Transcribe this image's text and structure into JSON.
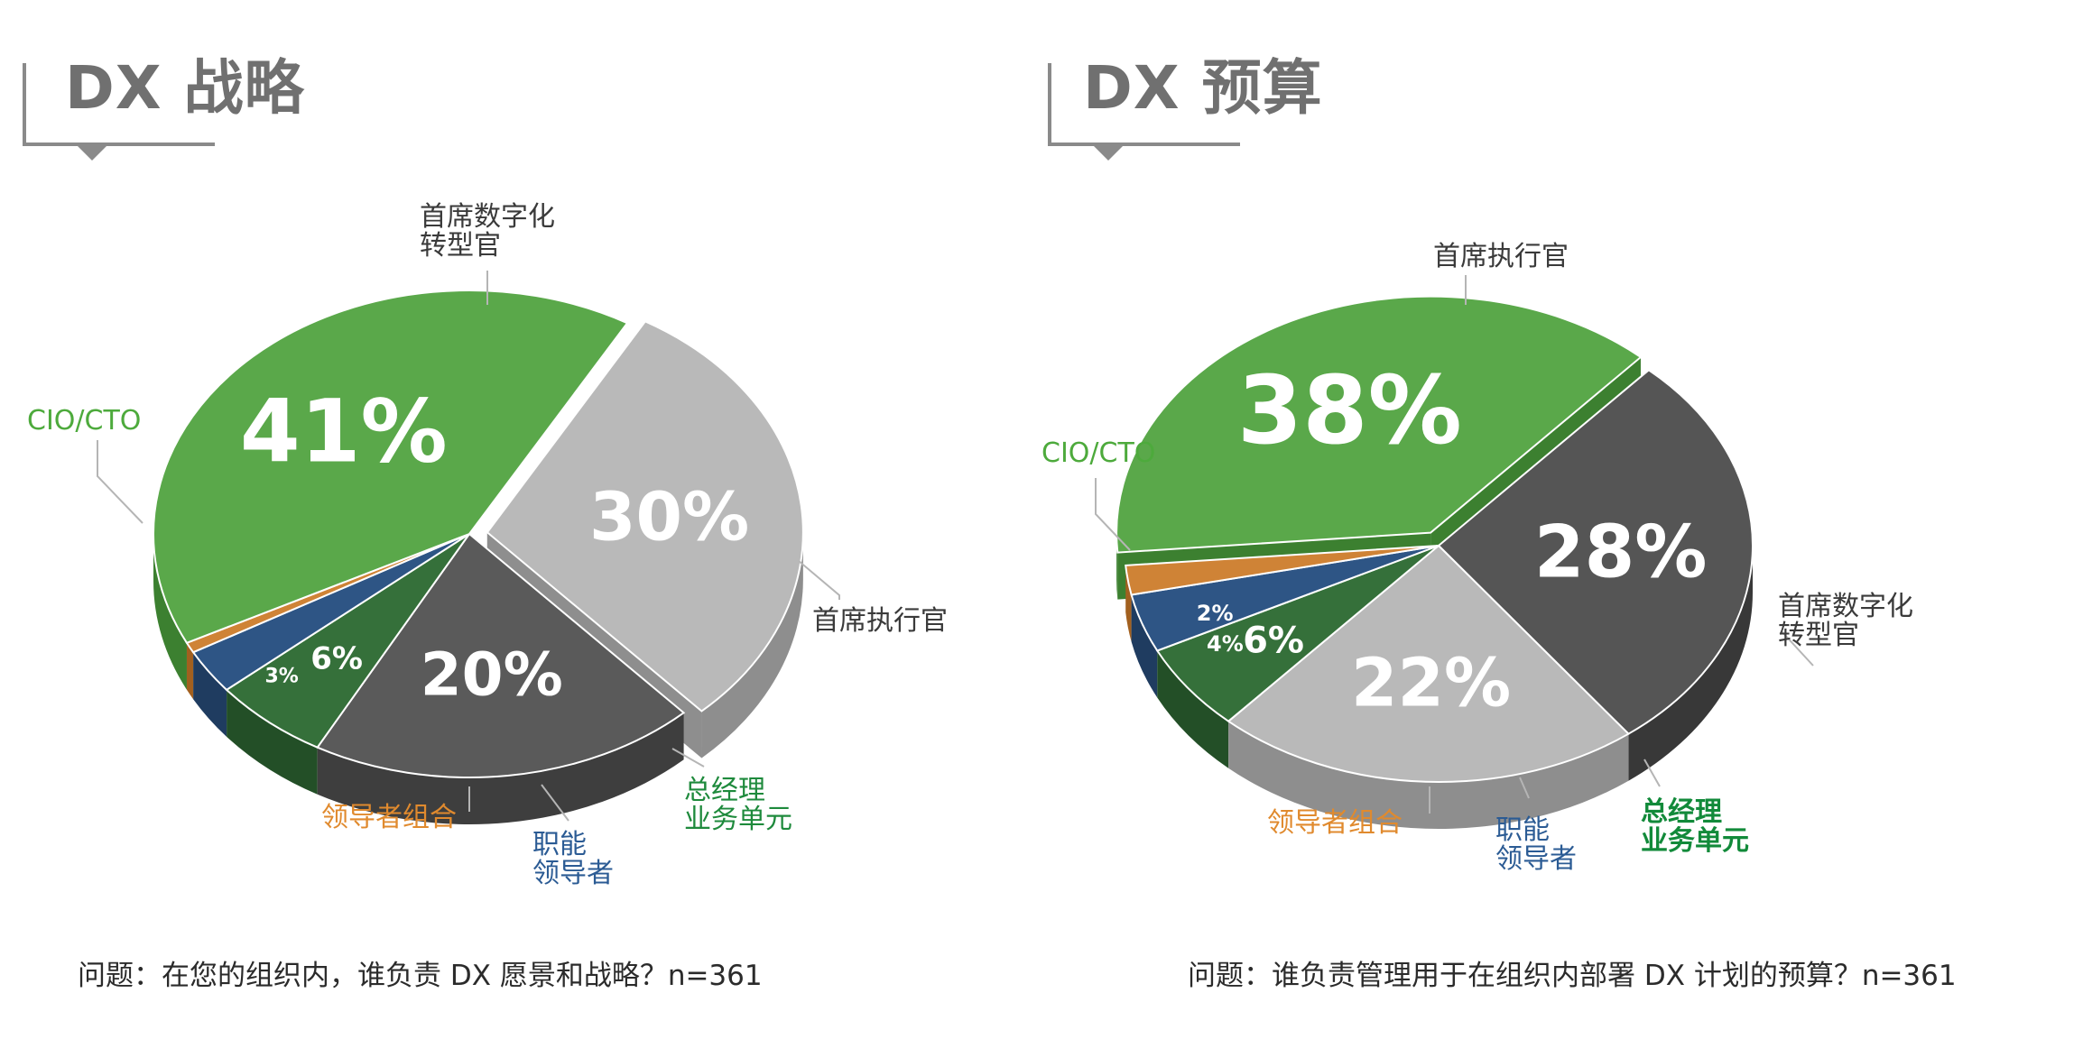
{
  "charts": [
    {
      "heading": "DX 战略",
      "question": "问题：在您的组织内，谁负责 DX 愿景和战略？n=361",
      "chart_data": {
        "type": "pie",
        "slices": [
          {
            "label": "首席数字化转型官",
            "label_lines": [
              "首席数字化",
              "转型官"
            ],
            "value": 30,
            "value_label": "30%",
            "color": "#b9b9b9",
            "side": "#8e8e8e",
            "label_color": "#3a3a3a"
          },
          {
            "label": "首席执行官",
            "label_lines": [
              "首席执行官"
            ],
            "value": 20,
            "value_label": "20%",
            "color": "#5a5a5a",
            "side": "#3e3e3e",
            "label_color": "#3a3a3a"
          },
          {
            "label": "总经理 业务单元",
            "label_lines": [
              "总经理",
              "业务单元"
            ],
            "value": 6,
            "value_label": "6%",
            "color": "#35703a",
            "side": "#234f27",
            "label_color": "#1e8a3c"
          },
          {
            "label": "职能领导者",
            "label_lines": [
              "职能",
              "领导者"
            ],
            "value": 3,
            "value_label": "3%",
            "color": "#2e5585",
            "side": "#1f3c60",
            "label_color": "#2b5b94"
          },
          {
            "label": "领导者组合",
            "label_lines": [
              "领导者组合"
            ],
            "value": 0.7,
            "value_label": "",
            "color": "#cf8336",
            "side": "#a2601f",
            "label_color": "#e08a2e"
          },
          {
            "label": "CIO/CTO",
            "label_lines": [
              "CIO/CTO"
            ],
            "value": 41,
            "value_label": "41%",
            "color": "#5aa84a",
            "side": "#3c8030",
            "label_color": "#4daa3c"
          }
        ]
      }
    },
    {
      "heading": "DX 预算",
      "question": "问题：谁负责管理用于在组织内部署 DX 计划的预算？n=361",
      "chart_data": {
        "type": "pie",
        "slices": [
          {
            "label": "首席执行官",
            "label_lines": [
              "首席执行官"
            ],
            "value": 28,
            "value_label": "28%",
            "color": "#555555",
            "side": "#383838",
            "label_color": "#3a3a3a"
          },
          {
            "label": "首席数字化转型官",
            "label_lines": [
              "首席数字化",
              "转型官"
            ],
            "value": 22,
            "value_label": "22%",
            "color": "#b9b9b9",
            "side": "#8e8e8e",
            "label_color": "#3a3a3a"
          },
          {
            "label": "总经理 业务单元",
            "label_lines": [
              "总经理",
              "业务单元"
            ],
            "value": 6,
            "value_label": "6%",
            "color": "#35703a",
            "side": "#234f27",
            "label_color": "#128a3a"
          },
          {
            "label": "职能领导者",
            "label_lines": [
              "职能",
              "领导者"
            ],
            "value": 4,
            "value_label": "4%",
            "color": "#2e5585",
            "side": "#1f3c60",
            "label_color": "#2b5b94"
          },
          {
            "label": "领导者组合",
            "label_lines": [
              "领导者组合"
            ],
            "value": 2,
            "value_label": "2%",
            "color": "#cf8336",
            "side": "#a2601f",
            "label_color": "#e08a2e"
          },
          {
            "label": "CIO/CTO",
            "label_lines": [
              "CIO/CTO"
            ],
            "value": 38,
            "value_label": "38%",
            "color": "#5aa84a",
            "side": "#3c8030",
            "label_color": "#4daa3c"
          }
        ]
      }
    }
  ]
}
